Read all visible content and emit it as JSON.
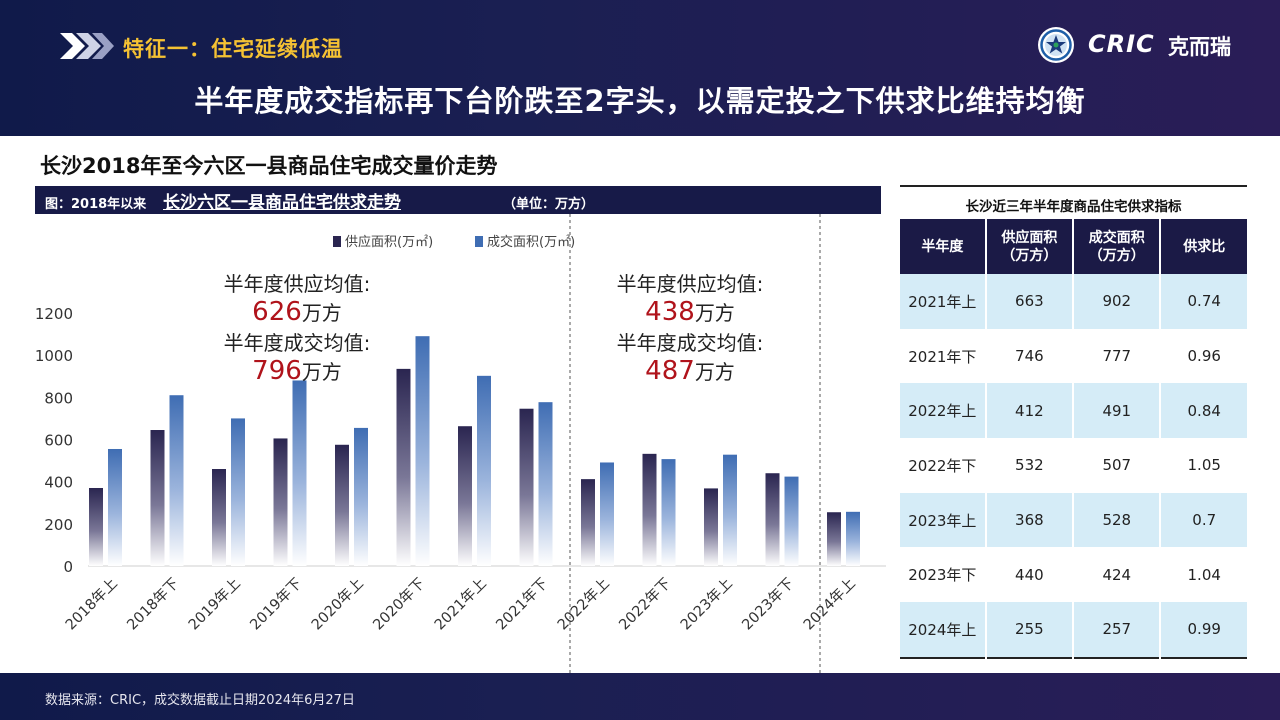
{
  "header": {
    "section_label": "特征一：住宅延续低温",
    "headline": "半年度成交指标再下台阶跌至2字头，以需定投之下供求比维持均衡",
    "logo_text": "CRIC",
    "logo_cn": "克而瑞"
  },
  "page_title": "长沙2018年至今六区一县商品住宅成交量价走势",
  "chart_title": {
    "prefix": "图：2018年以来",
    "main": "长沙六区一县商品住宅供求走势",
    "unit": "（单位：万方）"
  },
  "annotations": [
    {
      "supply_label": "半年度供应均值:",
      "supply_value": "626",
      "supply_unit": "万方",
      "deal_label": "半年度成交均值:",
      "deal_value": "796",
      "deal_unit": "万方"
    },
    {
      "supply_label": "半年度供应均值:",
      "supply_value": "438",
      "supply_unit": "万方",
      "deal_label": "半年度成交均值:",
      "deal_value": "487",
      "deal_unit": "万方"
    }
  ],
  "chart_data": {
    "type": "bar",
    "title": "长沙六区一县商品住宅供求走势",
    "categories": [
      "2018年上",
      "2018年下",
      "2019年上",
      "2019年下",
      "2020年上",
      "2020年下",
      "2021年上",
      "2021年下",
      "2022年上",
      "2022年下",
      "2023年上",
      "2023年下",
      "2024年上"
    ],
    "series": [
      {
        "name": "供应面积(万㎡)",
        "color": "#2a2550",
        "values": [
          370,
          645,
          460,
          605,
          575,
          935,
          663,
          746,
          412,
          532,
          368,
          440,
          255
        ]
      },
      {
        "name": "成交面积(万㎡)",
        "color": "#3f6db3",
        "values": [
          555,
          810,
          700,
          880,
          655,
          1090,
          902,
          777,
          491,
          507,
          528,
          424,
          257
        ]
      }
    ],
    "yticks": [
      0,
      200,
      400,
      600,
      800,
      1000,
      1200
    ],
    "ylim": [
      0,
      1200
    ],
    "legend": "top-center",
    "grid": false
  },
  "table": {
    "title": "长沙近三年半年度商品住宅供求指标",
    "headers": [
      [
        "半年度"
      ],
      [
        "供应面积",
        "（万方）"
      ],
      [
        "成交面积",
        "（万方）"
      ],
      [
        "供求比"
      ]
    ],
    "rows": [
      [
        "2021年上",
        "663",
        "902",
        "0.74"
      ],
      [
        "2021年下",
        "746",
        "777",
        "0.96"
      ],
      [
        "2022年上",
        "412",
        "491",
        "0.84"
      ],
      [
        "2022年下",
        "532",
        "507",
        "1.05"
      ],
      [
        "2023年上",
        "368",
        "528",
        "0.7"
      ],
      [
        "2023年下",
        "440",
        "424",
        "1.04"
      ],
      [
        "2024年上",
        "255",
        "257",
        "0.99"
      ]
    ]
  },
  "footer": {
    "source": "数据来源：CRIC，成交数据截止日期2024年6月27日"
  }
}
